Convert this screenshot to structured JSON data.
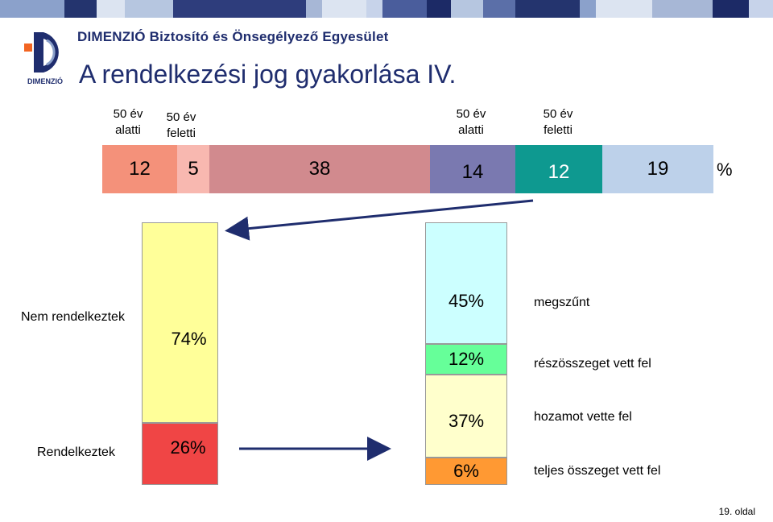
{
  "header": {
    "company": "DIMENZIÓ Biztosító és Önsegélyező Egyesület",
    "logo_text": "DIMENZIÓ",
    "title": "A rendelkezési jog gyakorlása IV."
  },
  "colors": {
    "stripe": [
      "#5b6fa8",
      "#b6c6e0",
      "#2e3d7c",
      "#8ba1cb",
      "#dce4f1",
      "#24346e",
      "#a7b7d6",
      "#4a5d9c",
      "#c7d3ea",
      "#1c2a66"
    ],
    "seg_12_a": "#f4917a",
    "seg_5": "#f8b8b0",
    "seg_38": "#d18a8e",
    "seg_14": "#7a79b0",
    "seg_12_b": "#0e9990",
    "seg_19": "#bdd1ea",
    "nem": "#ffff99",
    "rendelkeztek": "#f04545",
    "megszunt": "#ccffff",
    "reszosszeget": "#66ff99",
    "hozamot": "#ffffcc",
    "teljes": "#ff9933",
    "arrow": "#1f2d6e"
  },
  "top_headers": [
    {
      "line1": "50 év",
      "line2": "alatti"
    },
    {
      "line1": "50 év",
      "line2": "feletti"
    },
    {
      "line1": "50 év",
      "line2": "alatti"
    },
    {
      "line1": "50 év",
      "line2": "feletti"
    }
  ],
  "top_segments": [
    "12",
    "5",
    "38",
    "14",
    "12",
    "19"
  ],
  "top_unit": "%",
  "left_bar": {
    "nem_label": "Nem rendelkeztek",
    "nem_value": "74%",
    "rend_label": "Rendelkeztek",
    "rend_value": "26%"
  },
  "right_bar": [
    {
      "value": "45%",
      "label": "megszűnt"
    },
    {
      "value": "12%",
      "label": "részösszeget vett fel"
    },
    {
      "value": "37%",
      "label": "hozamot vette fel"
    },
    {
      "value": "6%",
      "label": "teljes összeget vett fel"
    }
  ],
  "footer": {
    "page": "19. oldal"
  }
}
